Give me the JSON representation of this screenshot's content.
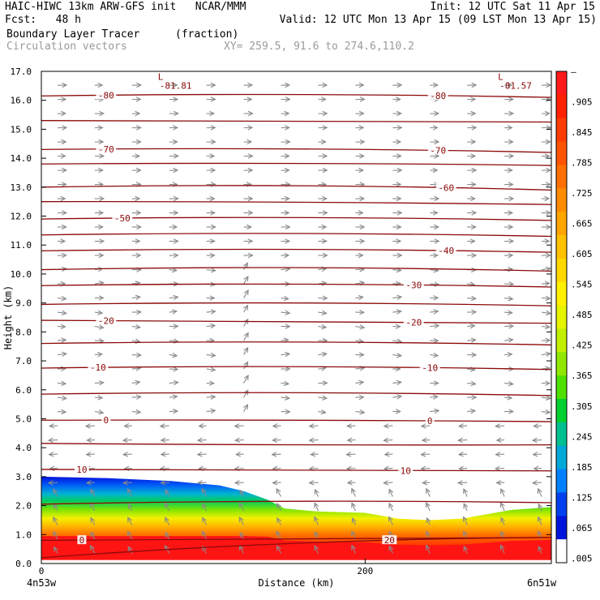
{
  "header": {
    "line1_left": "HAIC-HIWC 13km ARW-GFS init   NCAR/MMM",
    "line1_right": "Init: 12 UTC Sat 11 Apr 15",
    "line2_left": "Fcst:   48 h",
    "line2_right": "Valid: 12 UTC Mon 13 Apr 15 (09 LST Mon 13 Apr 15)",
    "line3_field": "Boundary Layer Tracer",
    "line3_units": "(fraction)",
    "line4_field": "Circulation vectors",
    "line4_xy": "XY= 259.5, 91.6 to 274.6,110.2"
  },
  "chart_data": {
    "type": "heatmap",
    "ylabel": "Height (km)",
    "xlabel": "Distance (km)",
    "ylim": [
      0,
      17
    ],
    "xlim": [
      0,
      315
    ],
    "yticks": [
      "0.0",
      "1.0",
      "2.0",
      "3.0",
      "4.0",
      "5.0",
      "6.0",
      "7.0",
      "8.0",
      "9.0",
      "10.0",
      "11.0",
      "12.0",
      "13.0",
      "14.0",
      "15.0",
      "16.0",
      "17.0"
    ],
    "xticks": [
      {
        "value": 0,
        "label": "0"
      },
      {
        "value": 200,
        "label": "200"
      }
    ],
    "x_endpoint_labels": [
      "4n53w",
      "6n51w"
    ],
    "colorbar": {
      "labels": [
        "–",
        ".905",
        ".845",
        ".785",
        ".725",
        ".665",
        ".605",
        ".545",
        ".485",
        ".425",
        ".365",
        ".305",
        ".245",
        ".185",
        ".125",
        ".065",
        ".005"
      ],
      "colors": [
        "#ff1a1a",
        "#ff2200",
        "#ff3c00",
        "#ff5500",
        "#ff7000",
        "#ff8c00",
        "#ffa500",
        "#ffc000",
        "#ffd800",
        "#fff000",
        "#e6f500",
        "#c0f000",
        "#90e800",
        "#50e000",
        "#00d030",
        "#00c090",
        "#00a8d8",
        "#0080ff",
        "#0040f0",
        "#0014dc",
        "#ffffff"
      ]
    },
    "field_top_profile": [
      [
        0,
        3.0
      ],
      [
        40,
        2.95
      ],
      [
        80,
        2.85
      ],
      [
        110,
        2.7
      ],
      [
        125,
        2.5
      ],
      [
        140,
        2.2
      ],
      [
        150,
        1.9
      ],
      [
        170,
        1.8
      ],
      [
        200,
        1.75
      ],
      [
        220,
        1.55
      ],
      [
        240,
        1.5
      ],
      [
        260,
        1.55
      ],
      [
        290,
        1.85
      ],
      [
        315,
        1.95
      ]
    ],
    "temperature_contours": [
      {
        "label": "-80",
        "y": [
          16.15,
          16.2,
          16.1
        ],
        "label_x": [
          40,
          245
        ]
      },
      {
        "label": "",
        "y": [
          15.3,
          15.28,
          15.25
        ]
      },
      {
        "label": "-70",
        "y": [
          14.3,
          14.32,
          14.2
        ],
        "label_x": [
          40,
          245
        ]
      },
      {
        "label": "",
        "y": [
          13.8,
          13.82,
          13.75
        ]
      },
      {
        "label": "-60",
        "y": [
          13.0,
          13.05,
          12.9
        ],
        "label_x": [
          250
        ]
      },
      {
        "label": "",
        "y": [
          12.5,
          12.48,
          12.4
        ]
      },
      {
        "label": "-50",
        "y": [
          11.9,
          11.95,
          11.85
        ],
        "label_x": [
          50
        ]
      },
      {
        "label": "",
        "y": [
          11.35,
          11.4,
          11.3
        ]
      },
      {
        "label": "-40",
        "y": [
          10.8,
          10.85,
          10.75
        ],
        "label_x": [
          250
        ]
      },
      {
        "label": "",
        "y": [
          10.15,
          10.22,
          10.1
        ]
      },
      {
        "label": "-30",
        "y": [
          9.6,
          9.65,
          9.55
        ],
        "label_x": [
          230
        ]
      },
      {
        "label": "",
        "y": [
          8.95,
          9.0,
          8.9
        ]
      },
      {
        "label": "-20",
        "y": [
          8.4,
          8.35,
          8.3
        ],
        "label_x": [
          40,
          230
        ]
      },
      {
        "label": "",
        "y": [
          7.6,
          7.65,
          7.55
        ]
      },
      {
        "label": "-10",
        "y": [
          6.75,
          6.8,
          6.7
        ],
        "label_x": [
          35,
          240
        ]
      },
      {
        "label": "",
        "y": [
          5.85,
          5.9,
          5.8
        ]
      },
      {
        "label": "0",
        "y": [
          4.95,
          4.95,
          4.9
        ],
        "label_x": [
          40,
          240
        ]
      },
      {
        "label": "",
        "y": [
          4.15,
          4.1,
          4.1
        ]
      },
      {
        "label": "10",
        "y": [
          3.25,
          3.22,
          3.2
        ],
        "label_x": [
          25,
          225
        ]
      },
      {
        "label": "",
        "y": [
          2.05,
          2.15,
          2.1
        ]
      },
      {
        "label": "0",
        "y": [
          0.8,
          0.85,
          0.9
        ],
        "label_x": [
          25
        ]
      },
      {
        "label": "20",
        "y": [
          0.2,
          0.7,
          0.9
        ],
        "label_x": [
          215
        ]
      }
    ],
    "lows": [
      {
        "symbol": "L",
        "value": "-81.81",
        "x": 75,
        "y": 16.65
      },
      {
        "symbol": "L",
        "value": "-81.57",
        "x": 285,
        "y": 16.65
      }
    ],
    "vectors": {
      "present": true,
      "color": "#8a8a8a"
    }
  }
}
